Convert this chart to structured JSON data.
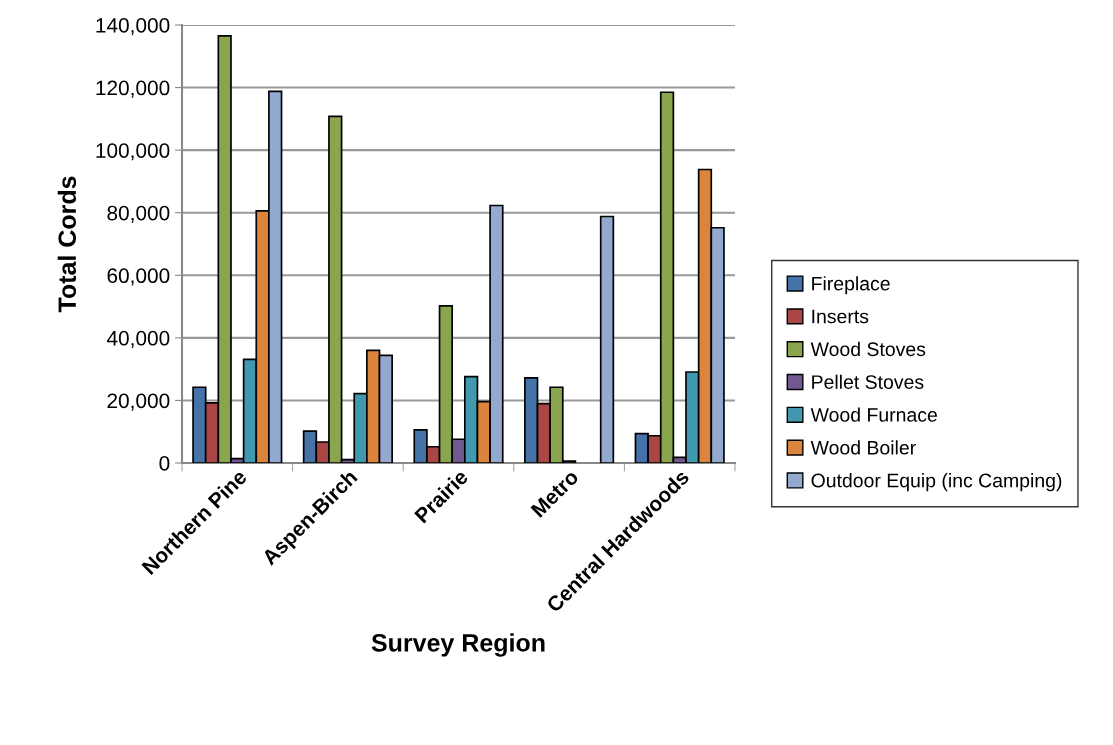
{
  "chart_data": {
    "type": "bar",
    "xlabel": "Survey Region",
    "ylabel": "Total Cords",
    "categories": [
      "Northern Pine",
      "Aspen-Birch",
      "Prairie",
      "Metro",
      "Central Hardwoods"
    ],
    "series": [
      {
        "name": "Fireplace",
        "color": "#4572a7",
        "values": [
          24200,
          10200,
          10600,
          27200,
          9400
        ]
      },
      {
        "name": "Inserts",
        "color": "#aa4643",
        "values": [
          19200,
          6700,
          5200,
          19000,
          8700
        ]
      },
      {
        "name": "Wood Stoves",
        "color": "#89a54e",
        "values": [
          136500,
          110800,
          50200,
          24200,
          118500
        ]
      },
      {
        "name": "Pellet Stoves",
        "color": "#71588f",
        "values": [
          1400,
          1100,
          7600,
          600,
          1800
        ]
      },
      {
        "name": "Wood Furnace",
        "color": "#4198af",
        "values": [
          33100,
          22200,
          27600,
          null,
          29100
        ]
      },
      {
        "name": "Wood Boiler",
        "color": "#db843d",
        "values": [
          80600,
          36000,
          19600,
          null,
          93800
        ]
      },
      {
        "name": "Outdoor Equip (inc Camping)",
        "color": "#93a9cf",
        "values": [
          118800,
          34400,
          82300,
          78800,
          75200
        ]
      }
    ],
    "ylim": [
      0,
      140000
    ],
    "yticks": [
      {
        "value": 0,
        "label": "0"
      },
      {
        "value": 20000,
        "label": "20,000"
      },
      {
        "value": 40000,
        "label": "40,000"
      },
      {
        "value": 60000,
        "label": "60,000"
      },
      {
        "value": 80000,
        "label": "80,000"
      },
      {
        "value": 100000,
        "label": "100,000"
      },
      {
        "value": 120000,
        "label": "120,000"
      },
      {
        "value": 140000,
        "label": "140,000"
      }
    ],
    "grid": "y",
    "legend": "right"
  }
}
